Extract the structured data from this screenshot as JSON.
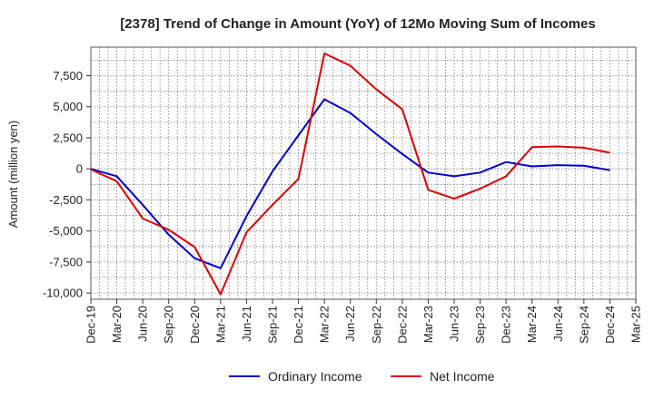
{
  "chart_data": {
    "type": "line",
    "title": "[2378]  Trend of Change in Amount (YoY) of 12Mo Moving Sum of Incomes",
    "xlabel": "",
    "ylabel": "Amount (million yen)",
    "ylim": [
      -10500,
      9800
    ],
    "yticks": [
      7500,
      5000,
      2500,
      0,
      -2500,
      -5000,
      -7500,
      -10000
    ],
    "ytick_labels": [
      "7,500",
      "5,000",
      "2,500",
      "0",
      "-2,500",
      "-5,000",
      "-7,500",
      "-10,000"
    ],
    "categories": [
      "Dec-19",
      "Mar-20",
      "Jun-20",
      "Sep-20",
      "Dec-20",
      "Mar-21",
      "Jun-21",
      "Sep-21",
      "Dec-21",
      "Mar-22",
      "Jun-22",
      "Sep-22",
      "Dec-22",
      "Mar-23",
      "Jun-23",
      "Sep-23",
      "Dec-23",
      "Mar-24",
      "Jun-24",
      "Sep-24",
      "Dec-24",
      "Mar-25"
    ],
    "series": [
      {
        "name": "Ordinary Income",
        "color": "#0000cc",
        "values": [
          0,
          -600,
          -2900,
          -5300,
          -7200,
          -8000,
          -3800,
          -200,
          2700,
          5600,
          4500,
          2800,
          1200,
          -300,
          -600,
          -300,
          550,
          200,
          300,
          250,
          -100,
          null
        ]
      },
      {
        "name": "Net Income",
        "color": "#dd0000",
        "values": [
          -50,
          -1000,
          -4000,
          -4900,
          -6300,
          -10100,
          -5100,
          -2900,
          -800,
          9300,
          8300,
          6400,
          4800,
          -1700,
          -2400,
          -1600,
          -600,
          1750,
          1800,
          1700,
          1300,
          null
        ]
      }
    ],
    "grid": true,
    "legend_position": "bottom"
  }
}
